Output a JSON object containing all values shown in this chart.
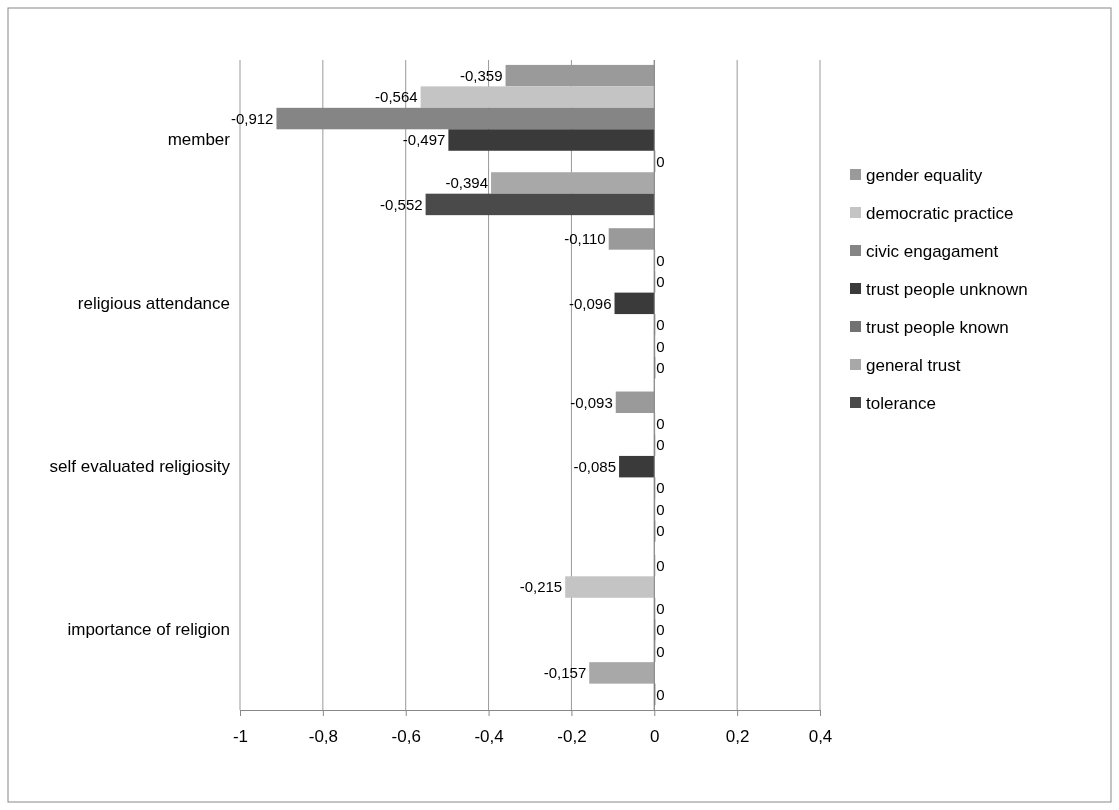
{
  "chart_data": {
    "type": "bar",
    "orientation": "horizontal",
    "categories": [
      "member",
      "religious attendance",
      "self evaluated religiosity",
      "importance of religion"
    ],
    "xlim": [
      -1,
      0.4
    ],
    "xticks": [
      {
        "value": -1,
        "label": "-1"
      },
      {
        "value": -0.8,
        "label": "-0,8"
      },
      {
        "value": -0.6,
        "label": "-0,6"
      },
      {
        "value": -0.4,
        "label": "-0,4"
      },
      {
        "value": -0.2,
        "label": "-0,2"
      },
      {
        "value": 0,
        "label": "0"
      },
      {
        "value": 0.2,
        "label": "0,2"
      },
      {
        "value": 0.4,
        "label": "0,4"
      }
    ],
    "grid": "x",
    "legend": "right",
    "series": [
      {
        "name": "gender equality",
        "color": "#9a9a9a",
        "values": [
          -0.359,
          -0.11,
          -0.093,
          0
        ],
        "value_labels": [
          "-0,359",
          "-0,110",
          "-0,093",
          "0"
        ]
      },
      {
        "name": "democratic practice",
        "color": "#c4c4c4",
        "values": [
          -0.564,
          0,
          0,
          -0.215
        ],
        "value_labels": [
          "-0,564",
          "0",
          "0",
          "-0,215"
        ]
      },
      {
        "name": "civic engagament",
        "color": "#858585",
        "values": [
          -0.912,
          0,
          0,
          0
        ],
        "value_labels": [
          "-0,912",
          "0",
          "0",
          "0"
        ]
      },
      {
        "name": "trust people unknown",
        "color": "#3a3a3a",
        "values": [
          -0.497,
          -0.096,
          -0.085,
          0
        ],
        "value_labels": [
          "-0,497",
          "-0,096",
          "-0,085",
          "0"
        ]
      },
      {
        "name": "trust people known",
        "color": "#727272",
        "values": [
          0,
          0,
          0,
          0
        ],
        "value_labels": [
          "0",
          "0",
          "0",
          "0"
        ]
      },
      {
        "name": "general trust",
        "color": "#a8a8a8",
        "values": [
          -0.394,
          0,
          0,
          -0.157
        ],
        "value_labels": [
          "-0,394",
          "0",
          "0",
          "-0,157"
        ]
      },
      {
        "name": "tolerance",
        "color": "#4a4a4a",
        "values": [
          -0.552,
          0,
          0,
          0
        ],
        "value_labels": [
          "-0,552",
          "0",
          "0",
          "0"
        ]
      }
    ]
  }
}
